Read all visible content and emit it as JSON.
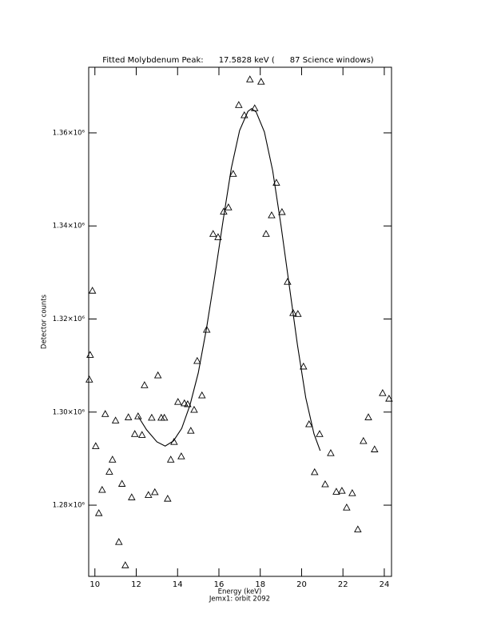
{
  "chart_data": {
    "type": "scatter",
    "title": "Fitted Molybdenum Peak:      17.5828 keV (      87 Science windows)",
    "x_label": "Energy (keV)",
    "subtitle": "Jemx1: orbit 2092",
    "y_label": "Detector counts",
    "xlim": [
      9.7,
      24.35
    ],
    "ylim": [
      1264700,
      1374100
    ],
    "xticks": [
      10,
      12,
      14,
      16,
      18,
      20,
      22,
      24
    ],
    "yticks": [
      {
        "value": 1280000,
        "label": "1.28×10⁶"
      },
      {
        "value": 1300000,
        "label": "1.30×10⁶"
      },
      {
        "value": 1320000,
        "label": "1.32×10⁶"
      },
      {
        "value": 1340000,
        "label": "1.34×10⁶"
      },
      {
        "value": 1360000,
        "label": "1.36×10⁶"
      }
    ],
    "color": "#000000",
    "series": [
      {
        "mark": "triangle",
        "x": [
          9.88,
          9.77,
          9.73,
          10.04,
          10.19,
          10.35,
          10.5,
          10.7,
          10.85,
          11.0,
          11.16,
          11.31,
          11.47,
          11.62,
          11.78,
          11.93,
          12.09,
          12.28,
          12.4,
          12.59,
          12.75,
          12.9,
          13.05,
          13.21,
          13.36,
          13.52,
          13.67,
          13.83,
          14.02,
          14.18,
          14.33,
          14.49,
          14.64,
          14.8,
          14.95,
          15.18,
          15.41,
          15.72,
          15.96,
          16.23,
          16.46,
          16.69,
          16.96,
          17.23,
          17.5,
          17.73,
          18.04,
          18.28,
          18.55,
          18.78,
          19.05,
          19.32,
          19.59,
          19.82,
          20.09,
          20.36,
          20.63,
          20.87,
          21.14,
          21.41,
          21.68,
          21.95,
          22.18,
          22.45,
          22.72,
          22.99,
          23.23,
          23.53,
          23.92,
          24.23
        ],
        "values": [
          1326100,
          1312300,
          1307000,
          1292700,
          1278300,
          1283300,
          1299600,
          1287200,
          1289800,
          1298200,
          1272100,
          1284600,
          1267100,
          1298900,
          1281700,
          1295300,
          1299100,
          1295100,
          1305800,
          1282200,
          1298800,
          1282800,
          1307900,
          1298800,
          1298800,
          1281400,
          1289800,
          1293600,
          1302200,
          1290500,
          1301900,
          1301700,
          1296000,
          1300500,
          1311000,
          1303600,
          1317700,
          1338300,
          1337600,
          1343100,
          1344000,
          1351200,
          1366000,
          1363800,
          1371500,
          1365300,
          1371000,
          1338300,
          1342300,
          1349300,
          1343000,
          1328000,
          1321300,
          1321100,
          1309800,
          1297400,
          1287100,
          1295300,
          1284500,
          1291200,
          1282900,
          1283100,
          1279500,
          1282600,
          1274800,
          1293800,
          1298900,
          1292000,
          1304100,
          1302900
        ]
      },
      {
        "mark": "line",
        "x": [
          12.09,
          12.5,
          13.0,
          13.4,
          13.8,
          14.2,
          14.6,
          15.0,
          15.4,
          15.8,
          16.2,
          16.6,
          17.0,
          17.4,
          17.58,
          17.8,
          18.2,
          18.6,
          19.0,
          19.4,
          19.8,
          20.2,
          20.6,
          20.9
        ],
        "values": [
          1299100,
          1296200,
          1293600,
          1292700,
          1293800,
          1296500,
          1301500,
          1308400,
          1318000,
          1329200,
          1341100,
          1352400,
          1360500,
          1364600,
          1365200,
          1364500,
          1360200,
          1351900,
          1340200,
          1327300,
          1314400,
          1303100,
          1295300,
          1291700
        ]
      }
    ]
  }
}
